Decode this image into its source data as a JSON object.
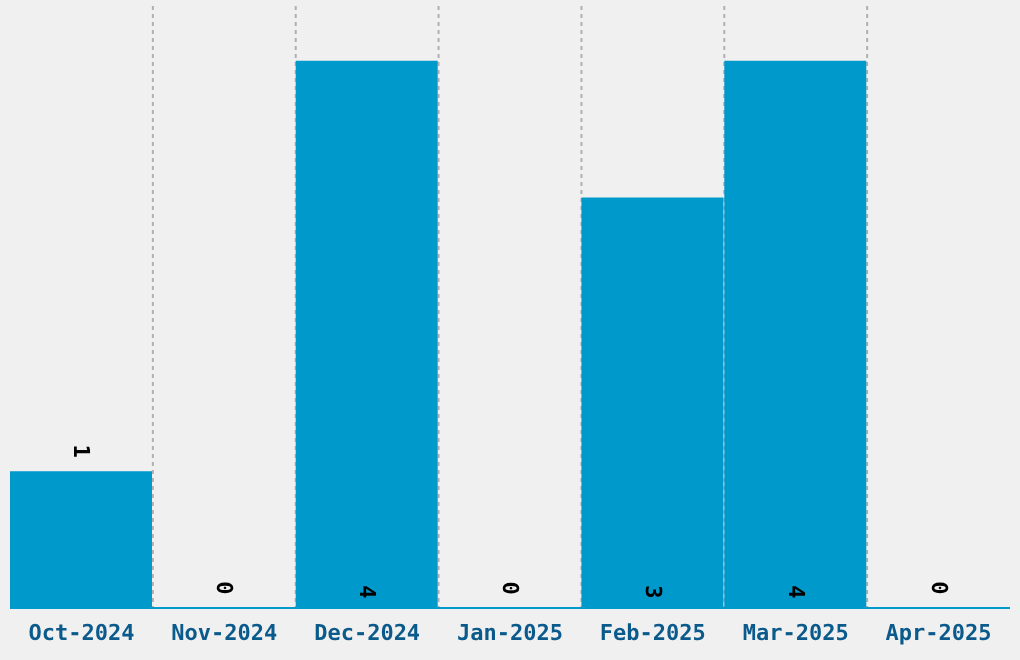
{
  "chart_data": {
    "type": "bar",
    "categories": [
      "Oct-2024",
      "Nov-2024",
      "Dec-2024",
      "Jan-2025",
      "Feb-2025",
      "Mar-2025",
      "Apr-2025"
    ],
    "values": [
      1,
      0,
      4,
      0,
      3,
      4,
      0
    ],
    "color": "#0099cc",
    "tick_labels": "x",
    "grid": "x",
    "data_labels": true
  }
}
